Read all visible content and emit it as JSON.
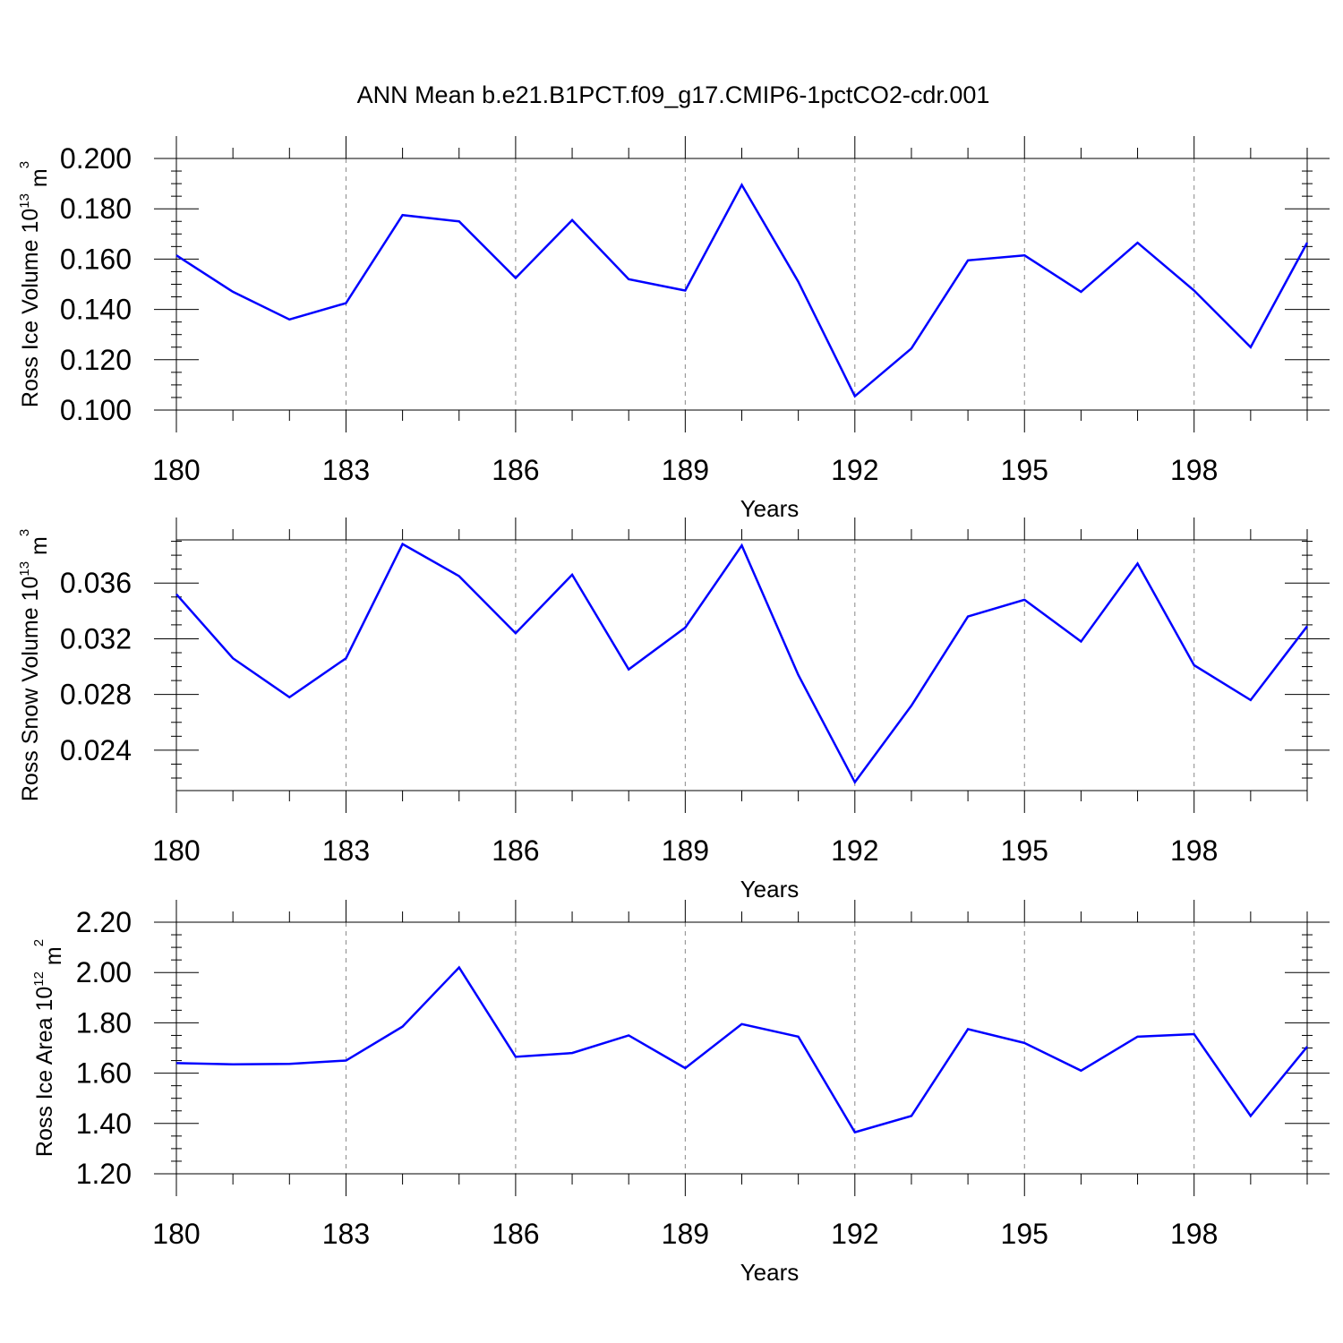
{
  "title": "ANN Mean b.e21.B1PCT.f09_g17.CMIP6-1pctCO2-cdr.001",
  "colors": {
    "line": "#0000ff",
    "frame": "#000000",
    "grid": "#888888"
  },
  "chart_data": [
    {
      "type": "line",
      "xlabel": "Years",
      "ylabel": {
        "main": "Ross Ice Volume 10",
        "exp": "13",
        "unit": " m",
        "unit_exp": "3"
      },
      "xlim": [
        180,
        200
      ],
      "xticks": [
        180,
        183,
        186,
        189,
        192,
        195,
        198
      ],
      "xtick_labels": [
        "180",
        "183",
        "186",
        "189",
        "192",
        "195",
        "198"
      ],
      "ylim": [
        0.1,
        0.2
      ],
      "yticks": [
        0.1,
        0.12,
        0.14,
        0.16,
        0.18,
        0.2
      ],
      "ytick_labels": [
        "0.100",
        "0.120",
        "0.140",
        "0.160",
        "0.180",
        "0.200"
      ],
      "yminor": 0.005,
      "grid": "vertical dashed at major x ticks",
      "x": [
        180,
        181,
        182,
        183,
        184,
        185,
        186,
        187,
        188,
        189,
        190,
        191,
        192,
        193,
        194,
        195,
        196,
        197,
        198,
        199,
        200
      ],
      "series": [
        {
          "values": [
            0.1615,
            0.147,
            0.136,
            0.1425,
            0.1775,
            0.175,
            0.1525,
            0.1755,
            0.152,
            0.1475,
            0.1895,
            0.151,
            0.1055,
            0.1245,
            0.1595,
            0.1615,
            0.147,
            0.1665,
            0.1475,
            0.125,
            0.1665
          ]
        }
      ]
    },
    {
      "type": "line",
      "xlabel": "Years",
      "ylabel": {
        "main": "Ross Snow Volume 10",
        "exp": "13",
        "unit": " m",
        "unit_exp": "3"
      },
      "xlim": [
        180,
        200
      ],
      "xticks": [
        180,
        183,
        186,
        189,
        192,
        195,
        198
      ],
      "xtick_labels": [
        "180",
        "183",
        "186",
        "189",
        "192",
        "195",
        "198"
      ],
      "ylim": [
        0.0211,
        0.0391
      ],
      "yticks": [
        0.024,
        0.028,
        0.032,
        0.036
      ],
      "ytick_labels": [
        "0.024",
        "0.028",
        "0.032",
        "0.036"
      ],
      "yminor": 0.001,
      "grid": "vertical dashed at major x ticks",
      "x": [
        180,
        181,
        182,
        183,
        184,
        185,
        186,
        187,
        188,
        189,
        190,
        191,
        192,
        193,
        194,
        195,
        196,
        197,
        198,
        199,
        200
      ],
      "series": [
        {
          "values": [
            0.0352,
            0.0306,
            0.0278,
            0.0306,
            0.0388,
            0.0365,
            0.0324,
            0.0366,
            0.0298,
            0.0328,
            0.0387,
            0.0294,
            0.0217,
            0.0272,
            0.0336,
            0.0348,
            0.0318,
            0.0374,
            0.0301,
            0.0276,
            0.0329
          ]
        }
      ]
    },
    {
      "type": "line",
      "xlabel": "Years",
      "ylabel": {
        "main": "Ross Ice Area 10",
        "exp": "12",
        "unit": " m",
        "unit_exp": "2"
      },
      "xlim": [
        180,
        200
      ],
      "xticks": [
        180,
        183,
        186,
        189,
        192,
        195,
        198
      ],
      "xtick_labels": [
        "180",
        "183",
        "186",
        "189",
        "192",
        "195",
        "198"
      ],
      "ylim": [
        1.2,
        2.2
      ],
      "yticks": [
        1.2,
        1.4,
        1.6,
        1.8,
        2.0,
        2.2
      ],
      "ytick_labels": [
        "1.20",
        "1.40",
        "1.60",
        "1.80",
        "2.00",
        "2.20"
      ],
      "yminor": 0.05,
      "grid": "vertical dashed at major x ticks",
      "x": [
        180,
        181,
        182,
        183,
        184,
        185,
        186,
        187,
        188,
        189,
        190,
        191,
        192,
        193,
        194,
        195,
        196,
        197,
        198,
        199,
        200
      ],
      "series": [
        {
          "values": [
            1.64,
            1.635,
            1.637,
            1.65,
            1.785,
            2.02,
            1.665,
            1.68,
            1.75,
            1.62,
            1.795,
            1.745,
            1.365,
            1.43,
            1.775,
            1.72,
            1.61,
            1.745,
            1.755,
            1.43,
            1.705
          ]
        }
      ]
    }
  ]
}
